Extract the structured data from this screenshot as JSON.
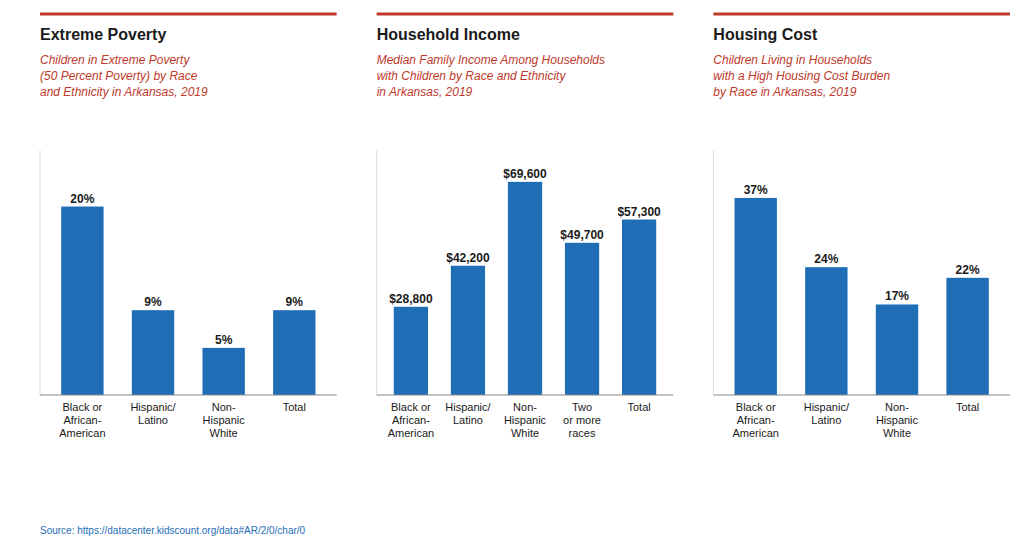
{
  "chart_data": [
    {
      "type": "bar",
      "title": "Extreme Poverty",
      "subtitle": "Children in Extreme Poverty\n(50 Percent Poverty) by Race\nand Ethnicity in Arkansas, 2019",
      "categories": [
        "Black or\nAfrican-\nAmerican",
        "Hispanic/\nLatino",
        "Non-\nHispanic\nWhite",
        "Total"
      ],
      "values": [
        20,
        9,
        5,
        9
      ],
      "value_labels": [
        "20%",
        "9%",
        "5%",
        "9%"
      ],
      "ylim": [
        0,
        26
      ],
      "color": "#1F6EB5",
      "data_labels": true,
      "tick_labels": "x",
      "grid": false
    },
    {
      "type": "bar",
      "title": "Household Income",
      "subtitle": "Median Family Income Among Households\nwith Children by Race and Ethnicity\nin Arkansas, 2019",
      "categories": [
        "Black or\nAfrican-\nAmerican",
        "Hispanic/\nLatino",
        "Non-\nHispanic\nWhite",
        "Two\nor more\nraces",
        "Total"
      ],
      "values": [
        28800,
        42200,
        69600,
        49700,
        57300
      ],
      "value_labels": [
        "$28,800",
        "$42,200",
        "$69,600",
        "$49,700",
        "$57,300"
      ],
      "ylim": [
        0,
        80000
      ],
      "color": "#1F6EB5",
      "data_labels": true,
      "tick_labels": "x",
      "grid": false
    },
    {
      "type": "bar",
      "title": "Housing Cost",
      "subtitle": "Children Living in Households\nwith a High Housing Cost Burden\nby Race in Arkansas, 2019",
      "categories": [
        "Black or\nAfrican-\nAmerican",
        "Hispanic/\nLatino",
        "Non-\nHispanic\nWhite",
        "Total"
      ],
      "values": [
        37,
        24,
        17,
        22
      ],
      "value_labels": [
        "37%",
        "24%",
        "17%",
        "22%"
      ],
      "ylim": [
        0,
        46
      ],
      "color": "#1F6EB5",
      "data_labels": true,
      "tick_labels": "x",
      "grid": false
    }
  ],
  "source": "Source: https://datacenter.kidscount.org/data#AR/2/0/char/0"
}
